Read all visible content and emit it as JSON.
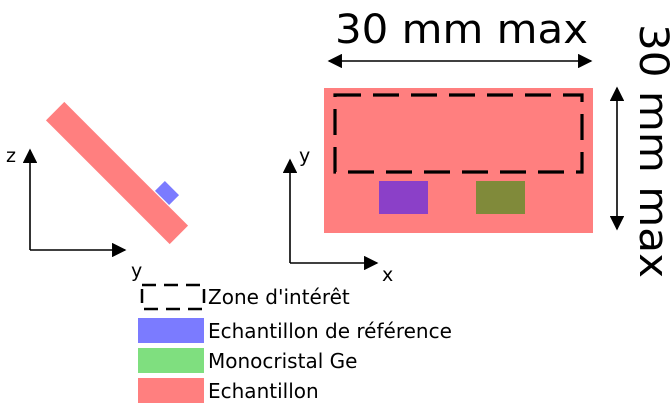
{
  "dimensions": {
    "width_label": "30 mm max",
    "height_label": "30 mm max"
  },
  "side_view": {
    "vertical_axis_label": "z",
    "horizontal_axis_label": "y"
  },
  "top_view": {
    "vertical_axis_label": "y",
    "horizontal_axis_label": "x"
  },
  "legend": [
    {
      "key": "zone",
      "label": "Zone d'intérêt",
      "swatch": "dashed-outline",
      "color": "#000000"
    },
    {
      "key": "reference",
      "label": "Echantillon de référence",
      "swatch": "fill",
      "color": "#7b7bff"
    },
    {
      "key": "crystal",
      "label": "Monocristal Ge",
      "swatch": "fill",
      "color": "#7fdf7f"
    },
    {
      "key": "sample",
      "label": "Echantillon",
      "swatch": "fill",
      "color": "#ff7f7f"
    }
  ],
  "colors": {
    "sample": "#ff7f7f",
    "reference_overlay": "#8b40c8",
    "crystal_overlay": "#808a3a",
    "reference_side": "#7b7bff",
    "axis": "#000000"
  }
}
